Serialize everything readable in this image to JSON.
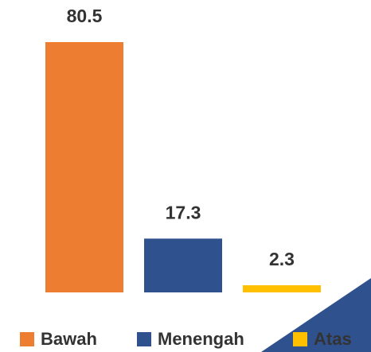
{
  "chart_data": {
    "type": "bar",
    "series": [
      {
        "name": "Bawah",
        "color": "#ED7D31",
        "values": [
          80.5
        ]
      },
      {
        "name": "Menengah",
        "color": "#2F528F",
        "values": [
          17.3
        ]
      },
      {
        "name": "Atas",
        "color": "#FFC000",
        "values": [
          2.3
        ]
      }
    ]
  }
}
